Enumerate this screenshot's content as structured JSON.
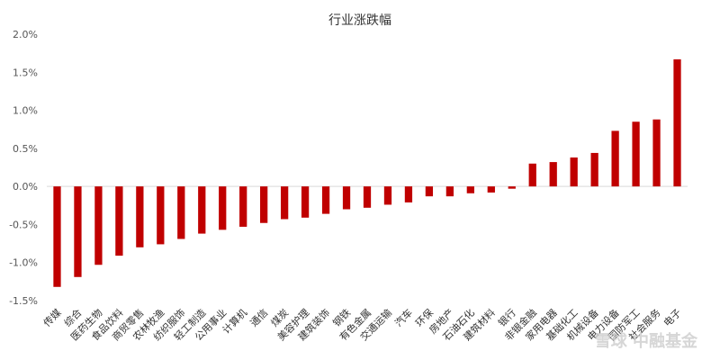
{
  "chart_data": {
    "type": "bar",
    "title": "行业涨跌幅",
    "xlabel": "",
    "ylabel": "",
    "ylim": [
      -1.5,
      2.0
    ],
    "yticks": [
      "2.0%",
      "1.5%",
      "1.0%",
      "0.5%",
      "0.0%",
      "-0.5%",
      "-1.0%",
      "-1.5%"
    ],
    "ytick_values": [
      2.0,
      1.5,
      1.0,
      0.5,
      0.0,
      -0.5,
      -1.0,
      -1.5
    ],
    "grid": false,
    "bar_color": "#c00000",
    "categories": [
      "传媒",
      "综合",
      "医药生物",
      "食品饮料",
      "商贸零售",
      "农林牧渔",
      "纺织服饰",
      "轻工制造",
      "公用事业",
      "计算机",
      "通信",
      "煤炭",
      "美容护理",
      "建筑装饰",
      "钢铁",
      "有色金属",
      "交通运输",
      "汽车",
      "环保",
      "房地产",
      "石油石化",
      "建筑材料",
      "银行",
      "非银金融",
      "家用电器",
      "基础化工",
      "机械设备",
      "电力设备",
      "国防军工",
      "社会服务",
      "电子"
    ],
    "values": [
      -1.32,
      -1.19,
      -1.03,
      -0.91,
      -0.8,
      -0.76,
      -0.69,
      -0.62,
      -0.57,
      -0.53,
      -0.48,
      -0.43,
      -0.41,
      -0.36,
      -0.3,
      -0.28,
      -0.24,
      -0.21,
      -0.13,
      -0.13,
      -0.09,
      -0.08,
      -0.03,
      0.3,
      0.32,
      0.38,
      0.44,
      0.73,
      0.85,
      0.88,
      1.67
    ]
  },
  "watermark": "雪球 中融基金"
}
